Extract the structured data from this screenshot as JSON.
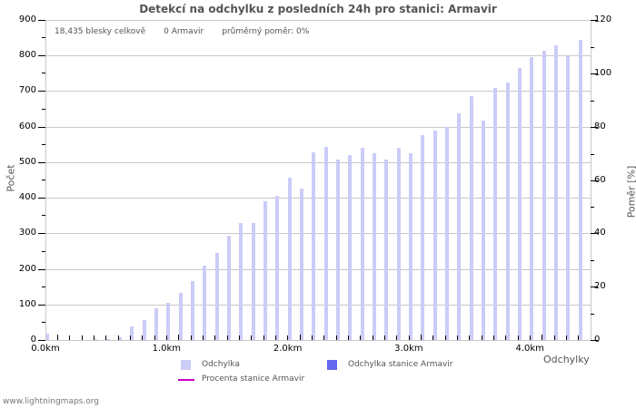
{
  "chart_data": {
    "type": "bar",
    "title": "Detekcí na odchylku z posledních 24h pro stanici: Armavir",
    "xlabel": "Odchylky",
    "ylabel": "Počet",
    "ylabel_right": "Poměr [%]",
    "ylim": [
      0,
      900
    ],
    "ylim_right": [
      0,
      120
    ],
    "yticks": [
      0,
      100,
      200,
      300,
      400,
      500,
      600,
      700,
      800,
      900
    ],
    "yticks_right": [
      0,
      20,
      40,
      60,
      80,
      100,
      120
    ],
    "xtick_labels": [
      "0.0km",
      "1.0km",
      "2.0km",
      "3.0km",
      "4.0km"
    ],
    "grid": true,
    "legend_position": "bottom",
    "categories": [
      "0.0",
      "0.1",
      "0.2",
      "0.3",
      "0.4",
      "0.5",
      "0.6",
      "0.7",
      "0.8",
      "0.9",
      "1.0",
      "1.1",
      "1.2",
      "1.3",
      "1.4",
      "1.5",
      "1.6",
      "1.7",
      "1.8",
      "1.9",
      "2.0",
      "2.1",
      "2.2",
      "2.3",
      "2.4",
      "2.5",
      "2.6",
      "2.7",
      "2.8",
      "2.9",
      "3.0",
      "3.1",
      "3.2",
      "3.3",
      "3.4",
      "3.5",
      "3.6",
      "3.7",
      "3.8",
      "3.9",
      "4.0",
      "4.1",
      "4.2",
      "4.3",
      "4.4"
    ],
    "series": [
      {
        "name": "Odchylka",
        "color": "#ccccf8",
        "values": [
          18,
          0,
          0,
          0,
          2,
          3,
          8,
          37,
          57,
          90,
          105,
          133,
          166,
          210,
          245,
          292,
          330,
          328,
          390,
          405,
          456,
          427,
          529,
          542,
          508,
          521,
          540,
          524,
          508,
          540,
          524,
          575,
          588,
          600,
          638,
          687,
          618,
          710,
          723,
          764,
          795,
          813,
          828,
          800,
          843
        ]
      },
      {
        "name": "Odchylka stanice Armavir",
        "color": "#6666ee",
        "values": [
          0,
          0,
          0,
          0,
          0,
          0,
          0,
          0,
          0,
          0,
          0,
          0,
          0,
          0,
          0,
          0,
          0,
          0,
          0,
          0,
          0,
          0,
          0,
          0,
          0,
          0,
          0,
          0,
          0,
          0,
          0,
          0,
          0,
          0,
          0,
          0,
          0,
          0,
          0,
          0,
          0,
          0,
          0,
          0,
          0
        ]
      },
      {
        "name": "Procenta stanice Armavir",
        "color": "#cc00cc",
        "type": "line",
        "values": []
      }
    ]
  },
  "stats": {
    "total": "18,435 blesky celkově",
    "station": "0 Armavir",
    "ratio": "průměrný poměr: 0%"
  },
  "legend": {
    "odchylka": "Odchylka",
    "odchylka_stanice": "Odchylka stanice Armavir",
    "procenta_stanice": "Procenta stanice Armavir"
  },
  "footer": "www.lightningmaps.org"
}
